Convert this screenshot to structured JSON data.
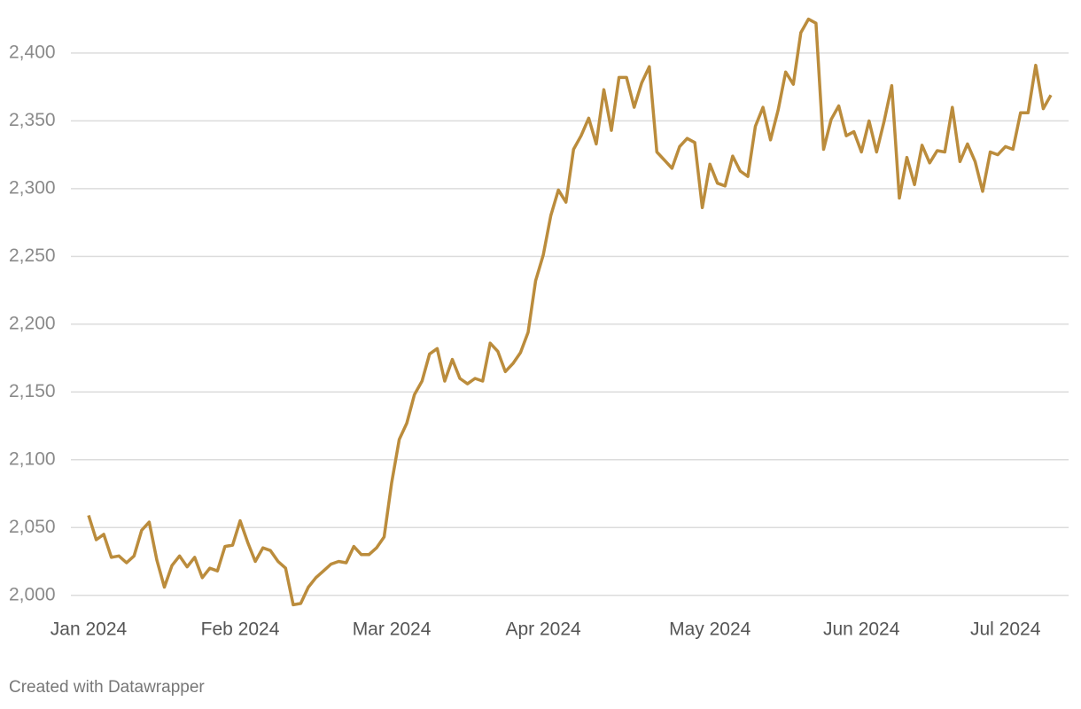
{
  "chart_data": {
    "type": "line",
    "categories": [
      "Jan 2024",
      null,
      null,
      null,
      null,
      null,
      null,
      null,
      null,
      null,
      null,
      null,
      null,
      null,
      null,
      null,
      null,
      null,
      null,
      null,
      "Feb 2024",
      null,
      null,
      null,
      null,
      null,
      null,
      null,
      null,
      null,
      null,
      null,
      null,
      null,
      null,
      null,
      null,
      null,
      null,
      null,
      "Mar 2024",
      null,
      null,
      null,
      null,
      null,
      null,
      null,
      null,
      null,
      null,
      null,
      null,
      null,
      null,
      null,
      null,
      null,
      null,
      null,
      "Apr 2024",
      null,
      null,
      null,
      null,
      null,
      null,
      null,
      null,
      null,
      null,
      null,
      null,
      null,
      null,
      null,
      null,
      null,
      null,
      null,
      null,
      null,
      "May 2024",
      null,
      null,
      null,
      null,
      null,
      null,
      null,
      null,
      null,
      null,
      null,
      null,
      null,
      null,
      null,
      null,
      null,
      null,
      null,
      "Jun 2024",
      null,
      null,
      null,
      null,
      null,
      null,
      null,
      null,
      null,
      null,
      null,
      null,
      null,
      null,
      null,
      null,
      null,
      null,
      "Jul 2024",
      null,
      null,
      null,
      null,
      null,
      null
    ],
    "values": [
      2059,
      2041,
      2045,
      2028,
      2029,
      2024,
      2029,
      2048,
      2054,
      2026,
      2006,
      2022,
      2029,
      2021,
      2028,
      2013,
      2020,
      2018,
      2036,
      2037,
      2055,
      2039,
      2025,
      2035,
      2033,
      2025,
      2020,
      1993,
      1994,
      2006,
      2013,
      2018,
      2023,
      2025,
      2024,
      2036,
      2030,
      2030,
      2035,
      2043,
      2083,
      2115,
      2127,
      2148,
      2158,
      2178,
      2182,
      2158,
      2174,
      2160,
      2156,
      2160,
      2158,
      2186,
      2180,
      2165,
      2171,
      2179,
      2194,
      2232,
      2251,
      2280,
      2299,
      2290,
      2329,
      2339,
      2352,
      2333,
      2373,
      2343,
      2382,
      2382,
      2360,
      2378,
      2390,
      2327,
      2321,
      2315,
      2331,
      2337,
      2334,
      2286,
      2318,
      2304,
      2302,
      2324,
      2313,
      2309,
      2346,
      2360,
      2336,
      2358,
      2386,
      2377,
      2415,
      2425,
      2422,
      2329,
      2351,
      2361,
      2339,
      2342,
      2327,
      2350,
      2327,
      2350,
      2376,
      2293,
      2323,
      2303,
      2332,
      2319,
      2328,
      2327,
      2360,
      2320,
      2333,
      2320,
      2298,
      2327,
      2325,
      2331,
      2329,
      2356,
      2356,
      2391,
      2359,
      2369
    ],
    "color": "#bb8c3c",
    "ylim": [
      1990,
      2430
    ],
    "yticks": [
      {
        "value": 2000,
        "label": "2,000"
      },
      {
        "value": 2050,
        "label": "2,050"
      },
      {
        "value": 2100,
        "label": "2,100"
      },
      {
        "value": 2150,
        "label": "2,150"
      },
      {
        "value": 2200,
        "label": "2,200"
      },
      {
        "value": 2250,
        "label": "2,250"
      },
      {
        "value": 2300,
        "label": "2,300"
      },
      {
        "value": 2350,
        "label": "2,350"
      },
      {
        "value": 2400,
        "label": "2,400"
      }
    ],
    "grid": true
  },
  "footer": "Created with Datawrapper"
}
